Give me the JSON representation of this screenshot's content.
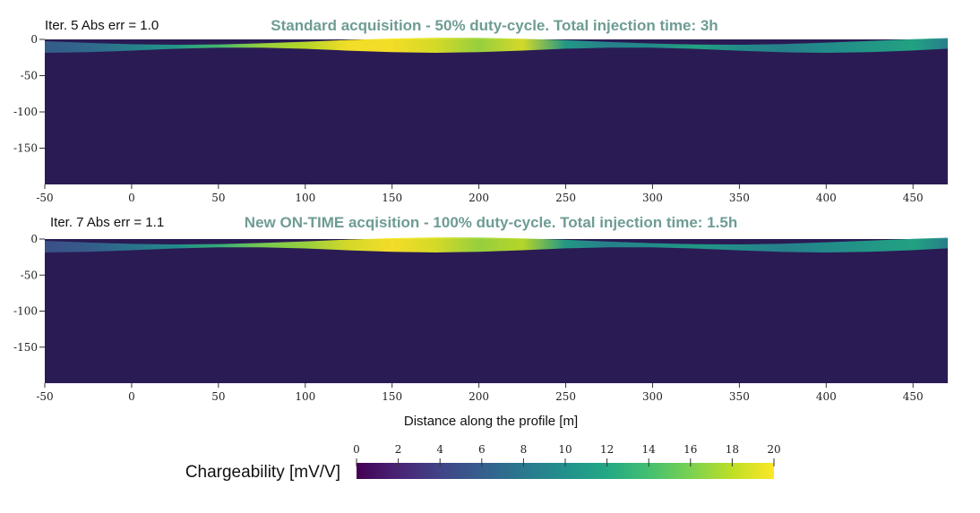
{
  "chart_data": [
    {
      "type": "heatmap",
      "iter_label": "Iter. 5 Abs err = 1.0",
      "title": "Standard acquisition - 50% duty-cycle. Total injection time: 3h",
      "title_color": "#6e9c94",
      "xlim": [
        -50,
        470
      ],
      "ylim": [
        -200,
        0
      ],
      "x_ticks": [
        "-50",
        "0",
        "50",
        "100",
        "150",
        "200",
        "250",
        "300",
        "350",
        "400",
        "450"
      ],
      "y_ticks": [
        "0",
        "-50",
        "-100",
        "-150"
      ],
      "x_tick_values": [
        -50,
        0,
        50,
        100,
        150,
        200,
        250,
        300,
        350,
        400,
        450
      ],
      "y_tick_values": [
        0,
        -50,
        -100,
        -150
      ],
      "surface_profile": {
        "x": [
          -50,
          -25,
          0,
          25,
          50,
          75,
          100,
          125,
          150,
          175,
          200,
          225,
          250,
          275,
          300,
          325,
          350,
          375,
          400,
          425,
          450,
          470
        ],
        "value": [
          6,
          7,
          9,
          11,
          14,
          17,
          18,
          20,
          20,
          19,
          17,
          19,
          11,
          9,
          10,
          12,
          10,
          9,
          10,
          11,
          12,
          9
        ]
      },
      "background_value": 0.5
    },
    {
      "type": "heatmap",
      "iter_label": "Iter. 7 Abs err = 1.1",
      "title": "New ON-TIME acqisition - 100% duty-cycle. Total injection time: 1.5h",
      "title_color": "#6e9c94",
      "xlim": [
        -50,
        470
      ],
      "ylim": [
        -200,
        0
      ],
      "x_ticks": [
        "-50",
        "0",
        "50",
        "100",
        "150",
        "200",
        "250",
        "300",
        "350",
        "400",
        "450"
      ],
      "y_ticks": [
        "0",
        "-50",
        "-100",
        "-150"
      ],
      "x_tick_values": [
        -50,
        0,
        50,
        100,
        150,
        200,
        250,
        300,
        350,
        400,
        450
      ],
      "y_tick_values": [
        0,
        -50,
        -100,
        -150
      ],
      "surface_profile": {
        "x": [
          -50,
          -25,
          0,
          25,
          50,
          75,
          100,
          125,
          150,
          175,
          200,
          225,
          250,
          275,
          300,
          325,
          350,
          375,
          400,
          425,
          450,
          470
        ],
        "value": [
          5,
          6,
          8,
          10,
          13,
          16,
          17,
          19,
          20,
          19,
          17,
          18,
          11,
          9,
          10,
          11,
          10,
          9,
          10,
          11,
          12,
          9
        ]
      },
      "background_value": 0.5
    }
  ],
  "xlabel": "Distance along the profile [m]",
  "colorbar": {
    "label": "Chargeability [mV/V]",
    "range": [
      0,
      20
    ],
    "ticks": [
      "0",
      "2",
      "4",
      "6",
      "8",
      "10",
      "12",
      "14",
      "16",
      "18",
      "20"
    ],
    "tick_values": [
      0,
      2,
      4,
      6,
      8,
      10,
      12,
      14,
      16,
      18,
      20
    ],
    "colormap": "viridis"
  }
}
